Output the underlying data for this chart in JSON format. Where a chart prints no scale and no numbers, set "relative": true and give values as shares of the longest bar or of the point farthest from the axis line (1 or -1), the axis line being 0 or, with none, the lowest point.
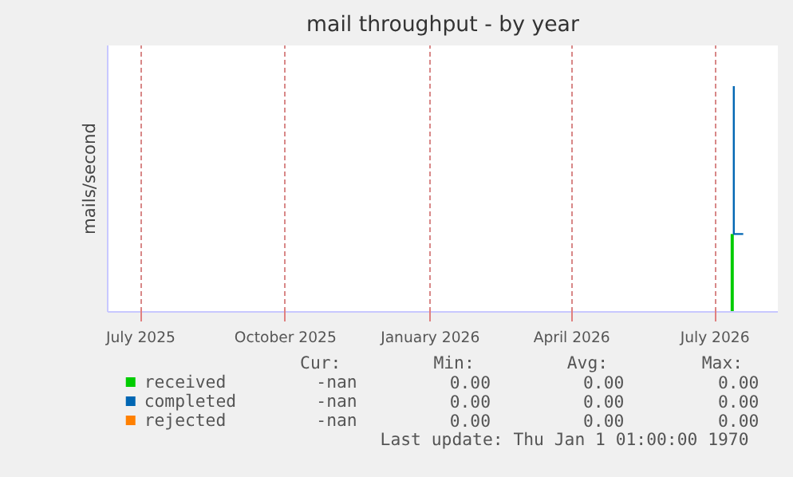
{
  "chart_data": {
    "type": "line",
    "title": "mail throughput - by year",
    "ylabel": "mails/second",
    "relative": true,
    "xlim": [
      "2025-06-10",
      "2026-08-10"
    ],
    "xticks": [
      {
        "value": "2025-07-01",
        "label": "July 2025"
      },
      {
        "value": "2025-10-01",
        "label": "October 2025"
      },
      {
        "value": "2026-01-01",
        "label": "January 2026"
      },
      {
        "value": "2026-04-01",
        "label": "April 2026"
      },
      {
        "value": "2026-07-01",
        "label": "July 2026"
      }
    ],
    "series": [
      {
        "name": "received",
        "type": "area",
        "color": "#00cc00",
        "x": [
          "2026-07-11",
          "2026-07-12",
          "2026-07-13"
        ],
        "values": [
          0.345,
          0.345,
          0.345
        ]
      },
      {
        "name": "completed",
        "color": "#0066b3",
        "x": [
          "2026-07-13",
          "2026-07-13",
          "2026-07-19"
        ],
        "values": [
          1,
          0.345,
          0.345
        ]
      },
      {
        "name": "rejected",
        "color": "#ff8000"
      }
    ],
    "annotations": [
      "Cur:",
      "Min:",
      "Avg:",
      "Max:",
      "-nan",
      "0.00",
      "0.00",
      "0.00",
      "-nan",
      "0.00",
      "0.00",
      "0.00",
      "-nan",
      "0.00",
      "0.00",
      "0.00",
      "Last update: Thu Jan  1 01:00:00 1970"
    ],
    "grid": "x",
    "legend": "bottom"
  }
}
